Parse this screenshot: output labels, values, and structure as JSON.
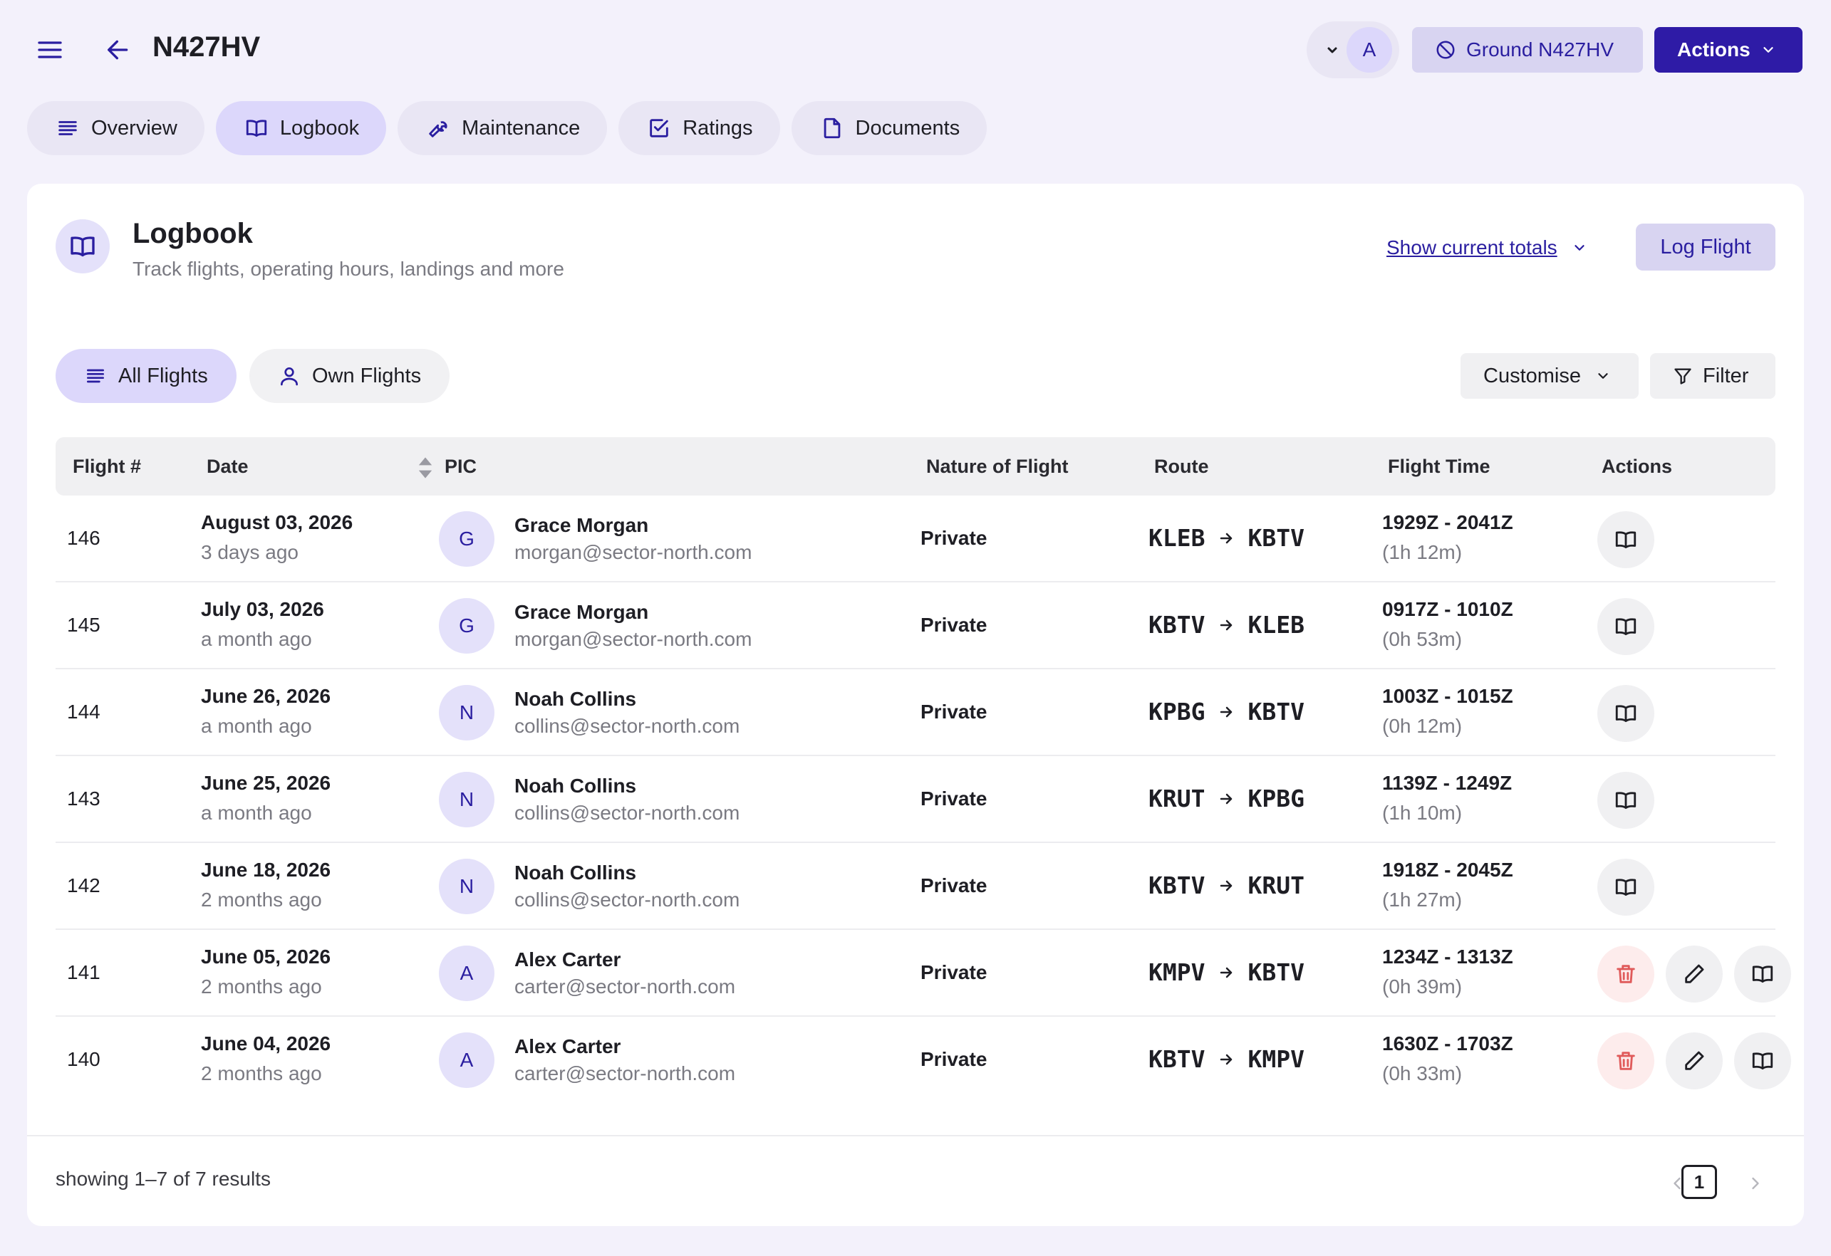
{
  "header": {
    "title": "N427HV",
    "user_initial": "A",
    "ground_label": "Ground N427HV",
    "actions_label": "Actions"
  },
  "tabs": [
    {
      "label": "Overview",
      "icon": "list-icon"
    },
    {
      "label": "Logbook",
      "icon": "book-icon",
      "active": true
    },
    {
      "label": "Maintenance",
      "icon": "wrench-icon"
    },
    {
      "label": "Ratings",
      "icon": "checkbox-icon"
    },
    {
      "label": "Documents",
      "icon": "document-icon"
    }
  ],
  "logbook": {
    "title": "Logbook",
    "subtitle": "Track flights, operating hours, landings and more",
    "totals_link": "Show current totals",
    "log_button": "Log Flight",
    "filters": {
      "all": "All Flights",
      "own": "Own Flights",
      "customise": "Customise",
      "filter": "Filter"
    }
  },
  "table": {
    "headers": {
      "flight": "Flight #",
      "date": "Date",
      "pic": "PIC",
      "nature": "Nature of Flight",
      "route": "Route",
      "time": "Flight Time",
      "actions": "Actions"
    },
    "rows": [
      {
        "num": "146",
        "date": "August 03, 2026",
        "ago": "3 days ago",
        "initial": "G",
        "name": "Grace Morgan",
        "email": "morgan@sector-north.com",
        "nature": "Private",
        "from": "KLEB",
        "to": "KBTV",
        "time": "1929Z - 2041Z",
        "dur": "(1h 12m)",
        "editable": false
      },
      {
        "num": "145",
        "date": "July 03, 2026",
        "ago": "a month ago",
        "initial": "G",
        "name": "Grace Morgan",
        "email": "morgan@sector-north.com",
        "nature": "Private",
        "from": "KBTV",
        "to": "KLEB",
        "time": "0917Z - 1010Z",
        "dur": "(0h 53m)",
        "editable": false
      },
      {
        "num": "144",
        "date": "June 26, 2026",
        "ago": "a month ago",
        "initial": "N",
        "name": "Noah Collins",
        "email": "collins@sector-north.com",
        "nature": "Private",
        "from": "KPBG",
        "to": "KBTV",
        "time": "1003Z - 1015Z",
        "dur": "(0h 12m)",
        "editable": false
      },
      {
        "num": "143",
        "date": "June 25, 2026",
        "ago": "a month ago",
        "initial": "N",
        "name": "Noah Collins",
        "email": "collins@sector-north.com",
        "nature": "Private",
        "from": "KRUT",
        "to": "KPBG",
        "time": "1139Z - 1249Z",
        "dur": "(1h 10m)",
        "editable": false
      },
      {
        "num": "142",
        "date": "June 18, 2026",
        "ago": "2 months ago",
        "initial": "N",
        "name": "Noah Collins",
        "email": "collins@sector-north.com",
        "nature": "Private",
        "from": "KBTV",
        "to": "KRUT",
        "time": "1918Z - 2045Z",
        "dur": "(1h 27m)",
        "editable": false
      },
      {
        "num": "141",
        "date": "June 05, 2026",
        "ago": "2 months ago",
        "initial": "A",
        "name": "Alex Carter",
        "email": "carter@sector-north.com",
        "nature": "Private",
        "from": "KMPV",
        "to": "KBTV",
        "time": "1234Z - 1313Z",
        "dur": "(0h 39m)",
        "editable": true
      },
      {
        "num": "140",
        "date": "June 04, 2026",
        "ago": "2 months ago",
        "initial": "A",
        "name": "Alex Carter",
        "email": "carter@sector-north.com",
        "nature": "Private",
        "from": "KBTV",
        "to": "KMPV",
        "time": "1630Z - 1703Z",
        "dur": "(0h 33m)",
        "editable": true
      }
    ]
  },
  "footer": {
    "showing": "showing 1–7 of 7 results",
    "page": "1"
  },
  "colors": {
    "accent": "#2e1ba6",
    "background": "#f3f1fb",
    "danger": "#e05a5a"
  }
}
